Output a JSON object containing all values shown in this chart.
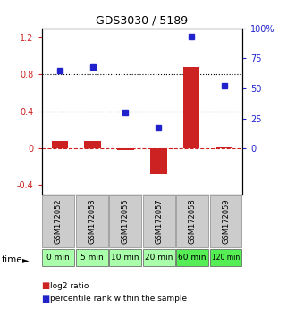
{
  "title": "GDS3030 / 5189",
  "samples": [
    "GSM172052",
    "GSM172053",
    "GSM172055",
    "GSM172057",
    "GSM172058",
    "GSM172059"
  ],
  "time_labels": [
    "0 min",
    "5 min",
    "10 min",
    "20 min",
    "60 min",
    "120 min"
  ],
  "log2_ratio": [
    0.08,
    0.08,
    -0.02,
    -0.28,
    0.88,
    0.01
  ],
  "percentile_rank": [
    65,
    68,
    30,
    17,
    93,
    52
  ],
  "bar_color": "#cc2222",
  "dot_color": "#2222cc",
  "ylim_left": [
    -0.5,
    1.3
  ],
  "ylim_right": [
    0,
    130
  ],
  "yticks_left": [
    -0.4,
    0.0,
    0.4,
    0.8,
    1.2
  ],
  "ytick_labels_left": [
    "-0.4",
    "0",
    "0.4",
    "0.8",
    "1.2"
  ],
  "yticks_right": [
    0,
    25,
    50,
    75,
    100
  ],
  "ytick_labels_right": [
    "0",
    "25",
    "50",
    "75",
    "100%"
  ],
  "hlines": [
    0.4,
    0.8
  ],
  "bg_color_gray": "#cccccc",
  "bg_color_light_green": "#aaffaa",
  "bg_color_green": "#55ee55",
  "time_row_colors": [
    "#aaffaa",
    "#aaffaa",
    "#aaffaa",
    "#aaffaa",
    "#55ee55",
    "#55ee55"
  ],
  "bar_width": 0.5
}
